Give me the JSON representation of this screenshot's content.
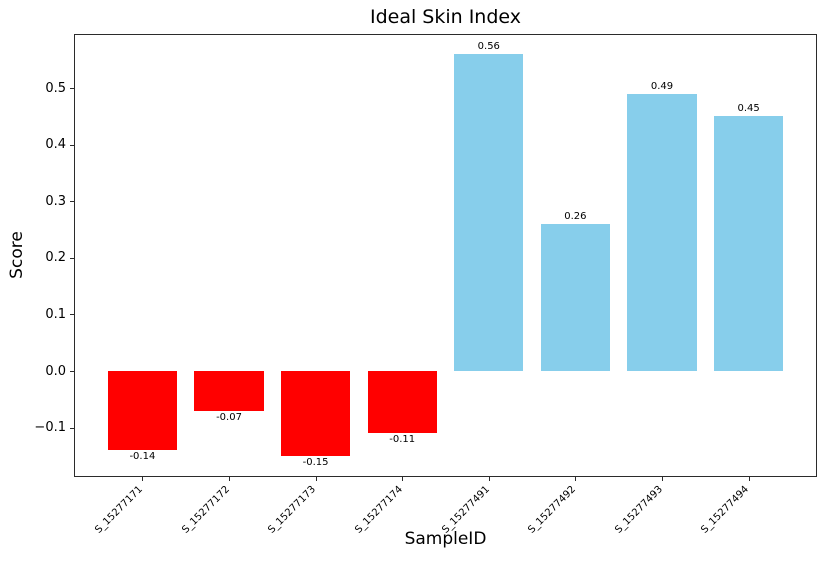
{
  "chart_data": {
    "type": "bar",
    "title": "Ideal Skin Index",
    "xlabel": "SampleID",
    "ylabel": "Score",
    "categories": [
      "S_15277171",
      "S_15277172",
      "S_15277173",
      "S_15277174",
      "S_15277491",
      "S_15277492",
      "S_15277493",
      "S_15277494"
    ],
    "values": [
      -0.14,
      -0.07,
      -0.15,
      -0.11,
      0.56,
      0.26,
      0.49,
      0.45
    ],
    "value_labels": [
      "-0.14",
      "-0.07",
      "-0.15",
      "-0.11",
      "0.56",
      "0.26",
      "0.49",
      "0.45"
    ],
    "bar_colors": [
      "#ff0000",
      "#ff0000",
      "#ff0000",
      "#ff0000",
      "#87ceeb",
      "#87ceeb",
      "#87ceeb",
      "#87ceeb"
    ],
    "negative_color": "#ff0000",
    "positive_color": "#87ceeb",
    "yticks": [
      -0.1,
      0.0,
      0.1,
      0.2,
      0.3,
      0.4,
      0.5
    ],
    "ytick_labels": [
      "−0.1",
      "0.0",
      "0.1",
      "0.2",
      "0.3",
      "0.4",
      "0.5"
    ],
    "xlim": [
      -0.79,
      7.79
    ],
    "ylim": [
      -0.1855,
      0.5955
    ],
    "bar_width": 0.8,
    "grid": false,
    "legend": null,
    "background_color": "#ffffff",
    "axis_color": "#2b2b2b",
    "text_color": "#000000"
  }
}
